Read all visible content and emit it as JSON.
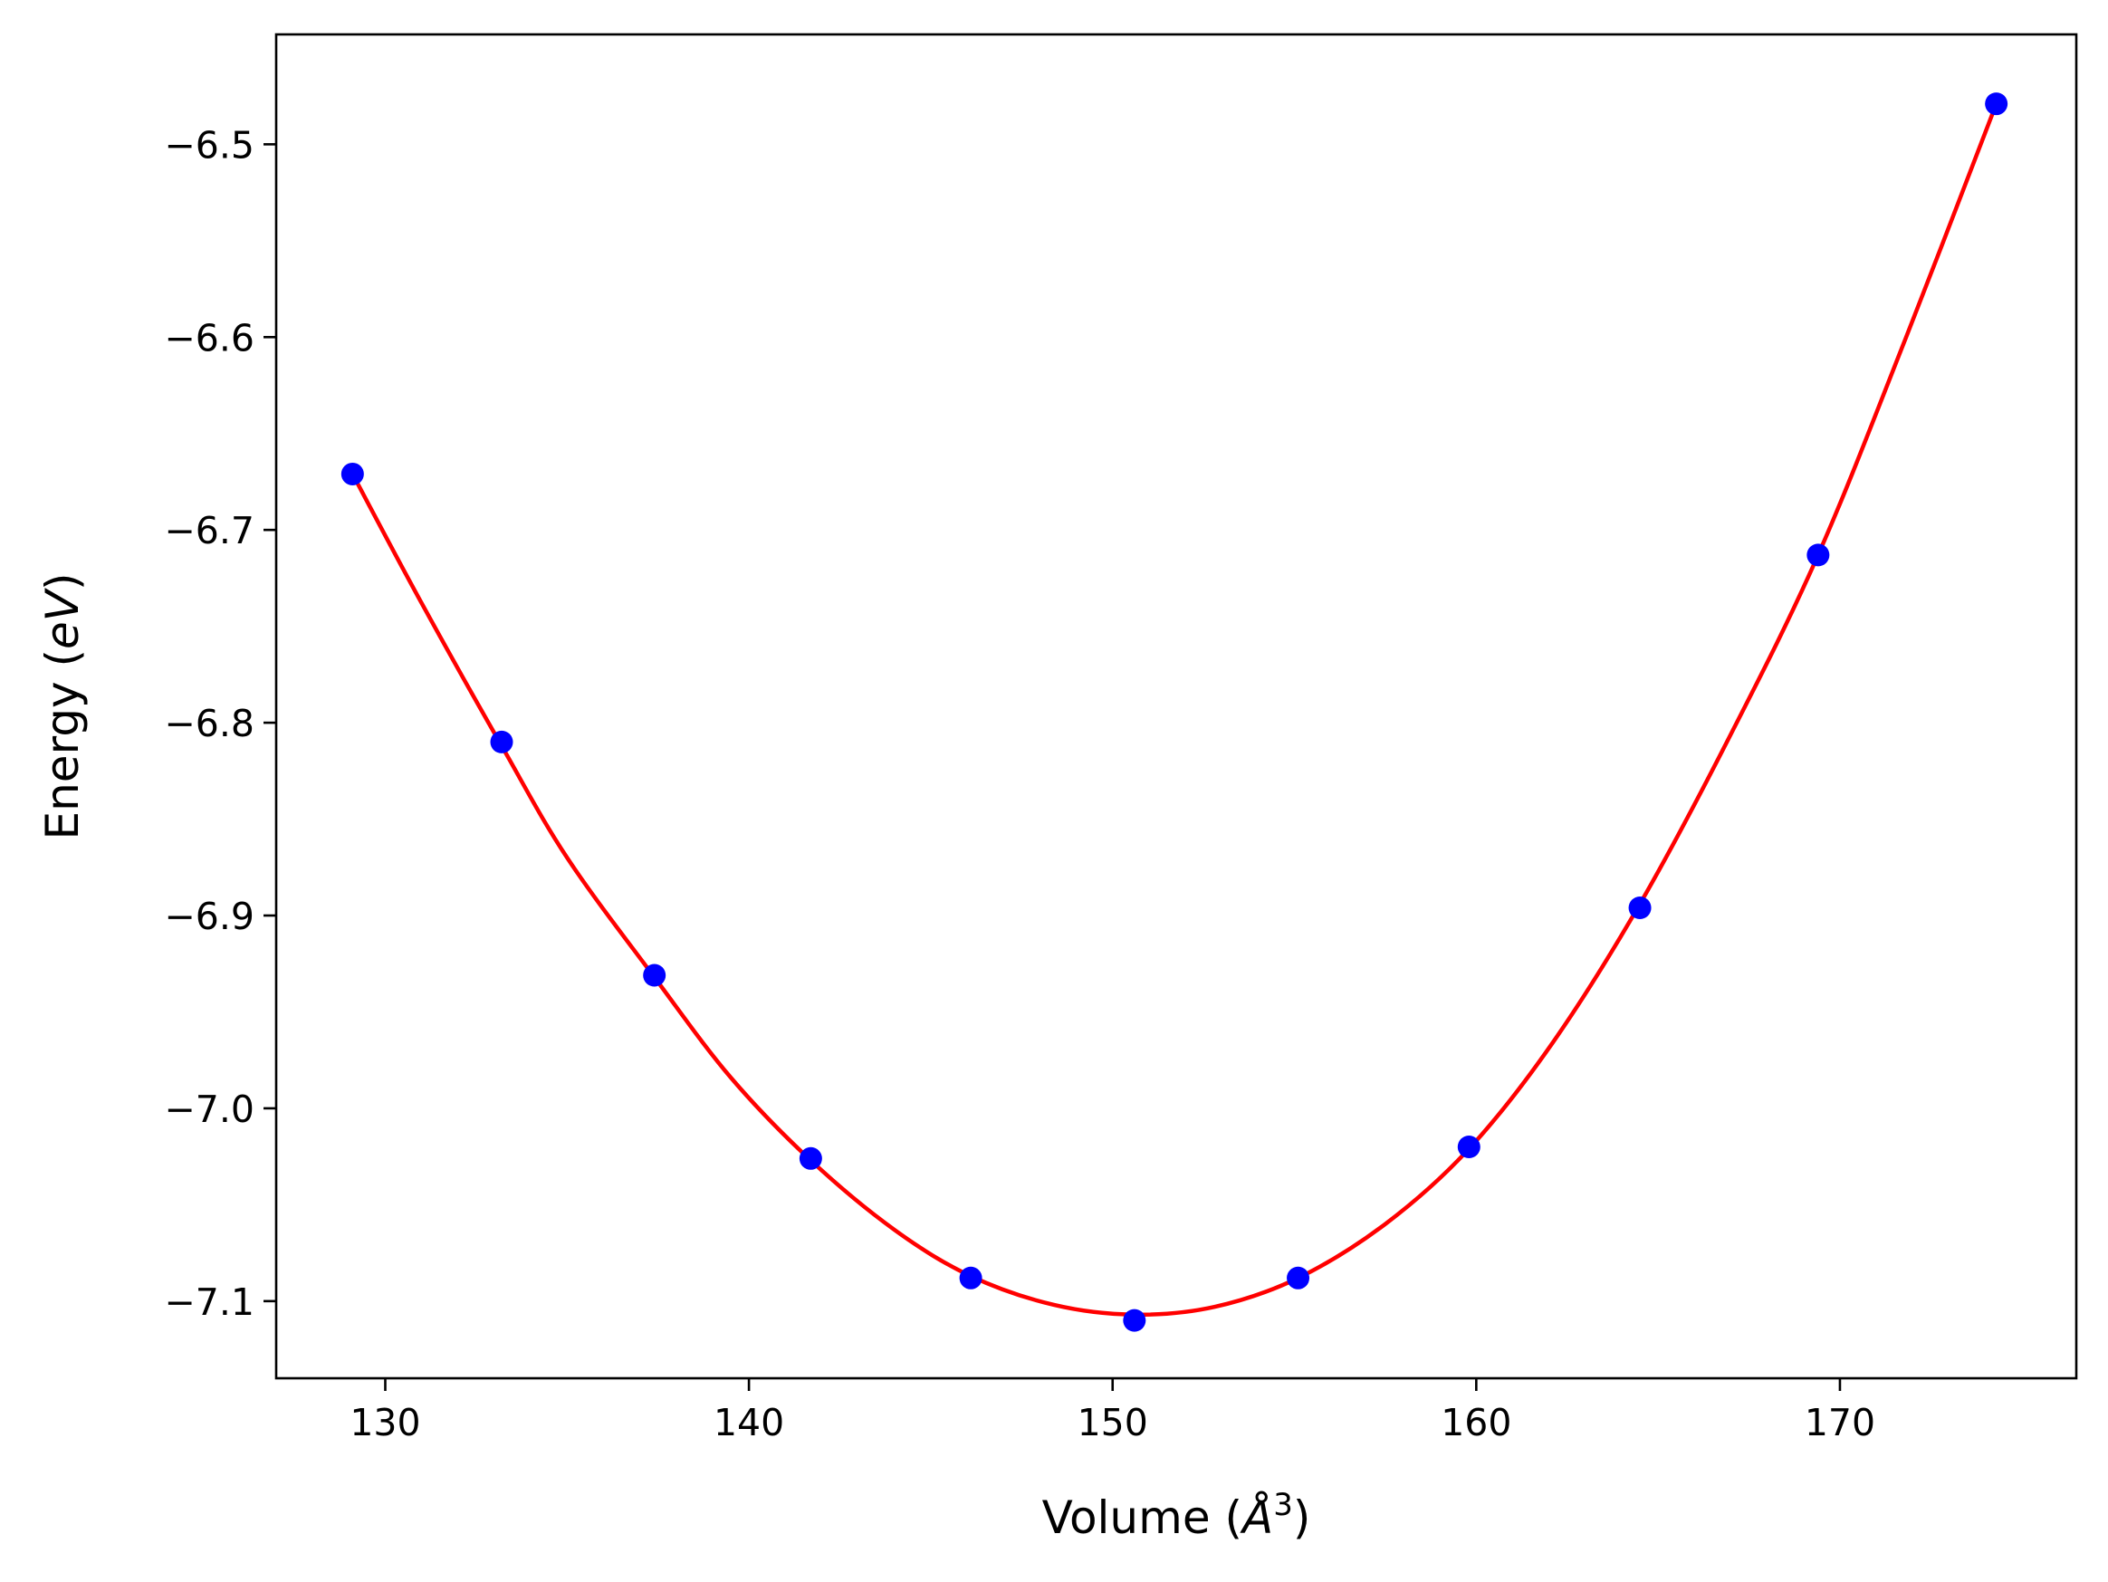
{
  "chart_data": {
    "type": "scatter",
    "title": "",
    "xlabel": {
      "prefix": "Volume (",
      "unit_base": "Å",
      "unit_exp": "3",
      "suffix": ")"
    },
    "ylabel": {
      "prefix": "Energy (",
      "unit": "eV",
      "suffix": ")"
    },
    "xlim": [
      127.0,
      176.5
    ],
    "ylim": [
      -7.14,
      -6.443
    ],
    "xticks": [
      130,
      140,
      150,
      160,
      170
    ],
    "xtick_labels": [
      "130",
      "140",
      "150",
      "160",
      "170"
    ],
    "yticks": [
      -6.5,
      -6.6,
      -6.7,
      -6.8,
      -6.9,
      -7.0,
      -7.1
    ],
    "ytick_labels": [
      "−6.5",
      "−6.6",
      "−6.7",
      "−6.8",
      "−6.9",
      "−7.0",
      "−7.1"
    ],
    "grid": false,
    "legend": "none",
    "series": [
      {
        "kind": "points",
        "color": "#0000ff",
        "x": [
          129.1,
          133.2,
          137.4,
          141.7,
          146.1,
          150.6,
          155.1,
          159.8,
          164.5,
          169.4,
          174.3
        ],
        "y": [
          -6.671,
          -6.81,
          -6.931,
          -7.026,
          -7.088,
          -7.11,
          -7.088,
          -7.02,
          -6.896,
          -6.713,
          -6.479
        ]
      },
      {
        "kind": "fit-curve",
        "color": "#ff0000",
        "x": [
          129.1,
          131.0,
          133.2,
          135.0,
          137.4,
          139.5,
          141.7,
          144.0,
          146.1,
          148.4,
          150.6,
          152.8,
          155.1,
          157.5,
          159.8,
          162.1,
          164.5,
          167.0,
          169.4,
          171.8,
          174.3
        ],
        "y": [
          -6.671,
          -6.738,
          -6.812,
          -6.87,
          -6.932,
          -6.984,
          -7.027,
          -7.063,
          -7.087,
          -7.102,
          -7.107,
          -7.103,
          -7.088,
          -7.06,
          -7.021,
          -6.966,
          -6.894,
          -6.806,
          -6.713,
          -6.601,
          -6.479
        ]
      }
    ]
  }
}
